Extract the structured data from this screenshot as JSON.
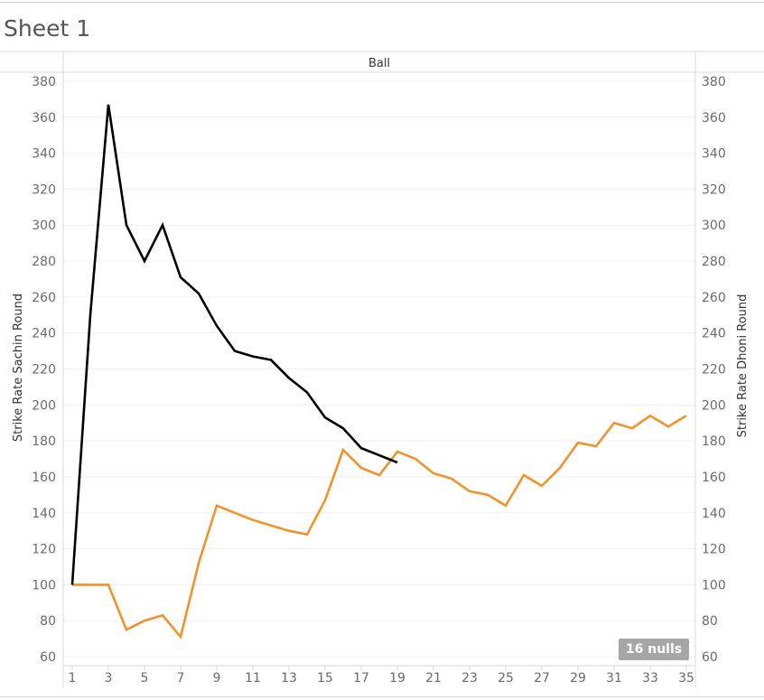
{
  "sheet": {
    "title": "Sheet 1"
  },
  "nulls_badge": "16 nulls",
  "chart_data": {
    "type": "line",
    "title": "",
    "header": "Ball",
    "ylabel_left": "Strike Rate Sachin Round",
    "ylabel_right": "Strike Rate Dhoni Round",
    "ylim": [
      55,
      385
    ],
    "xlim": [
      0.5,
      35.5
    ],
    "y_ticks": [
      60,
      80,
      100,
      120,
      140,
      160,
      180,
      200,
      220,
      240,
      260,
      280,
      300,
      320,
      340,
      360,
      380
    ],
    "x_ticks": [
      1,
      3,
      5,
      7,
      9,
      11,
      13,
      15,
      17,
      19,
      21,
      23,
      25,
      27,
      29,
      31,
      33,
      35
    ],
    "grid": true,
    "series": [
      {
        "color": "#000000",
        "x": [
          1,
          2,
          3,
          4,
          5,
          6,
          7,
          8,
          9,
          10,
          11,
          12,
          13,
          14,
          15,
          16,
          17,
          18,
          19
        ],
        "y": [
          100,
          250,
          367,
          300,
          280,
          300,
          271,
          262,
          244,
          230,
          227,
          225,
          215,
          207,
          193,
          187,
          176,
          172,
          168
        ]
      },
      {
        "color": "#f0932b",
        "x": [
          1,
          2,
          3,
          4,
          5,
          6,
          7,
          8,
          9,
          10,
          11,
          12,
          13,
          14,
          15,
          16,
          17,
          18,
          19,
          20,
          21,
          22,
          23,
          24,
          25,
          26,
          27,
          28,
          29,
          30,
          31,
          32,
          33,
          34,
          35
        ],
        "y": [
          100,
          100,
          100,
          75,
          80,
          83,
          71,
          112,
          144,
          140,
          136,
          133,
          130,
          128,
          147,
          175,
          165,
          161,
          174,
          170,
          162,
          159,
          152,
          150,
          144,
          161,
          155,
          165,
          179,
          177,
          190,
          187,
          194,
          188,
          194
        ]
      }
    ]
  }
}
